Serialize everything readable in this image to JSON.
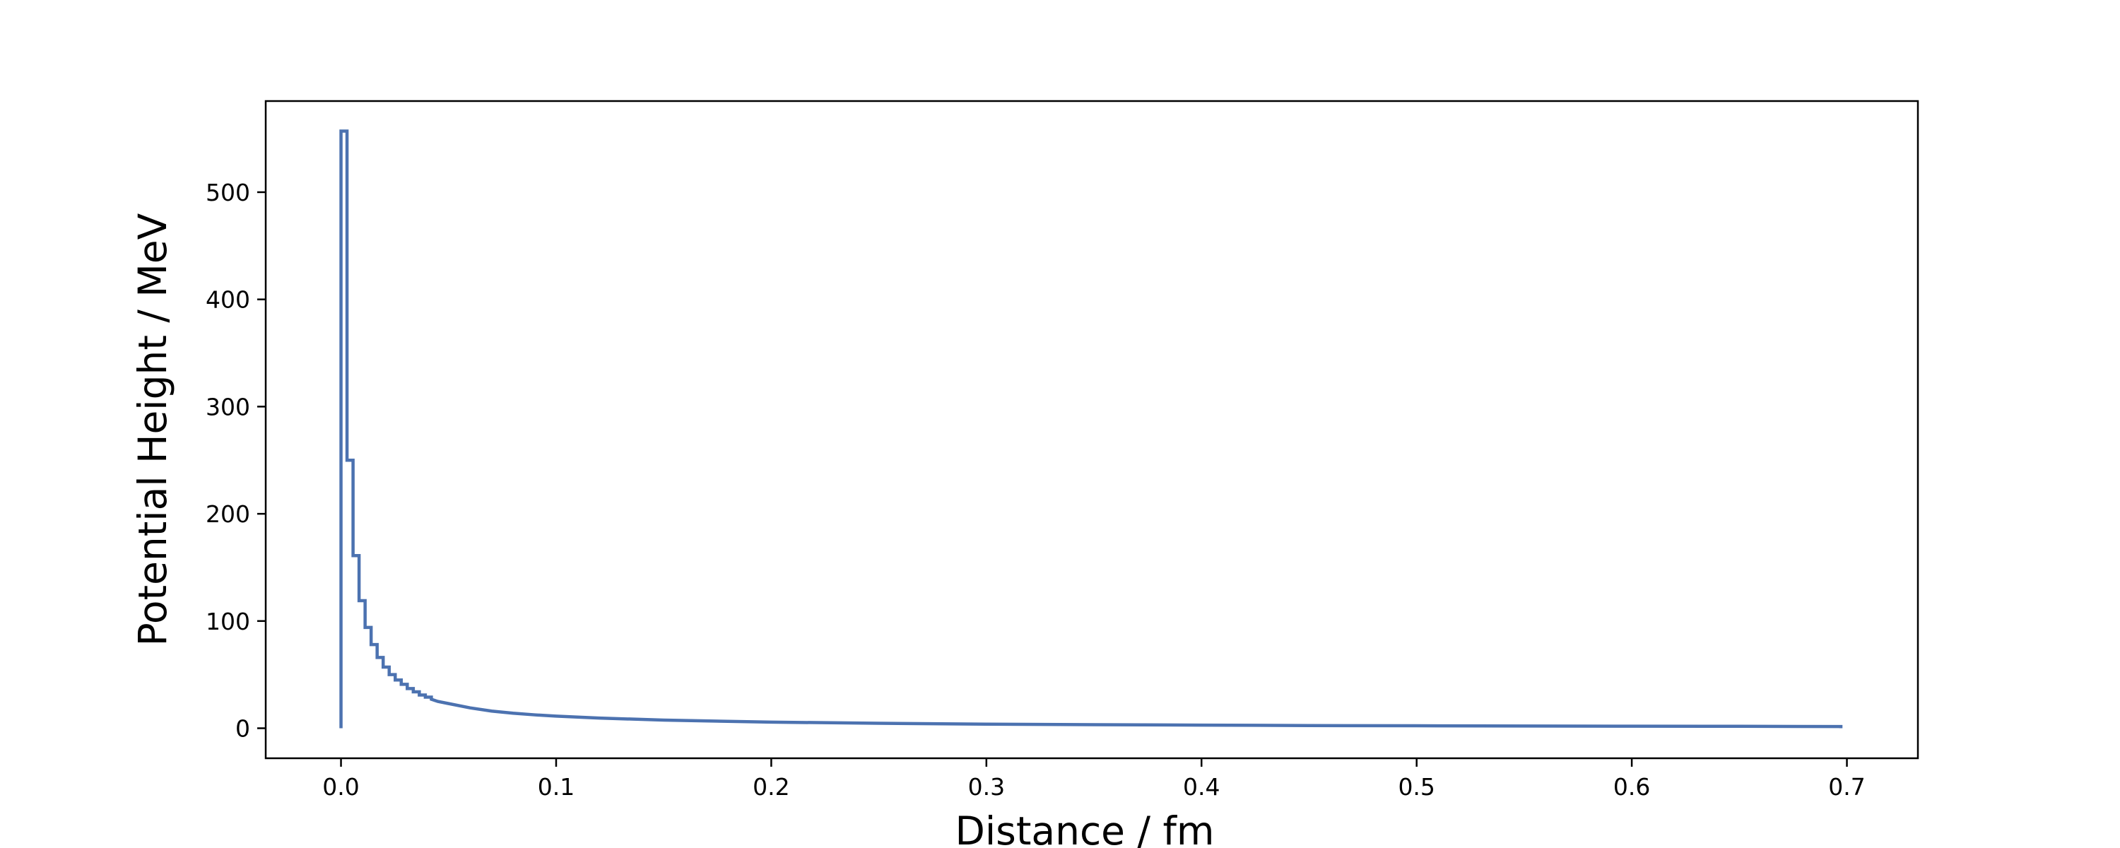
{
  "chart_data": {
    "type": "line",
    "drawstyle": "steps",
    "title": "",
    "xlabel": "Distance / fm",
    "ylabel": "Potential Height / MeV",
    "xlim": [
      -0.035,
      0.733
    ],
    "ylim": [
      -28,
      585
    ],
    "grid": false,
    "legend": "none",
    "line_color": "#4c72b0",
    "x_ticks": [
      0.0,
      0.1,
      0.2,
      0.3,
      0.4,
      0.5,
      0.6,
      0.7
    ],
    "x_tick_labels": [
      "0.0",
      "0.1",
      "0.2",
      "0.3",
      "0.4",
      "0.5",
      "0.6",
      "0.7"
    ],
    "y_ticks": [
      0,
      100,
      200,
      300,
      400,
      500
    ],
    "y_tick_labels": [
      "0",
      "100",
      "200",
      "300",
      "400",
      "500"
    ],
    "series": [
      {
        "x": [
          0.0,
          0.0,
          0.0028,
          0.0028,
          0.0056,
          0.0056,
          0.0084,
          0.0084,
          0.0112,
          0.0112,
          0.014,
          0.014,
          0.0168,
          0.0168,
          0.0196,
          0.0196,
          0.0224,
          0.0224,
          0.0252,
          0.0252,
          0.028,
          0.028,
          0.0308,
          0.0308,
          0.0336,
          0.0336,
          0.0364,
          0.0364,
          0.0392,
          0.0392,
          0.042,
          0.042,
          0.045,
          0.05,
          0.06,
          0.07,
          0.08,
          0.09,
          0.1,
          0.12,
          0.15,
          0.2,
          0.25,
          0.3,
          0.35,
          0.4,
          0.45,
          0.5,
          0.55,
          0.6,
          0.65,
          0.6972,
          0.6972
        ],
        "y": [
          0,
          557,
          557,
          250,
          250,
          161,
          161,
          119,
          119,
          94,
          94,
          78,
          78,
          66,
          66,
          57,
          57,
          50,
          50,
          45,
          45,
          41,
          41,
          37,
          37,
          34,
          34,
          31,
          31,
          29,
          29,
          27,
          25,
          23,
          19,
          16,
          14,
          12.5,
          11.3,
          9.5,
          7.6,
          5.7,
          4.6,
          3.8,
          3.3,
          2.9,
          2.5,
          2.3,
          2.1,
          1.9,
          1.8,
          1.6,
          0
        ]
      }
    ]
  }
}
